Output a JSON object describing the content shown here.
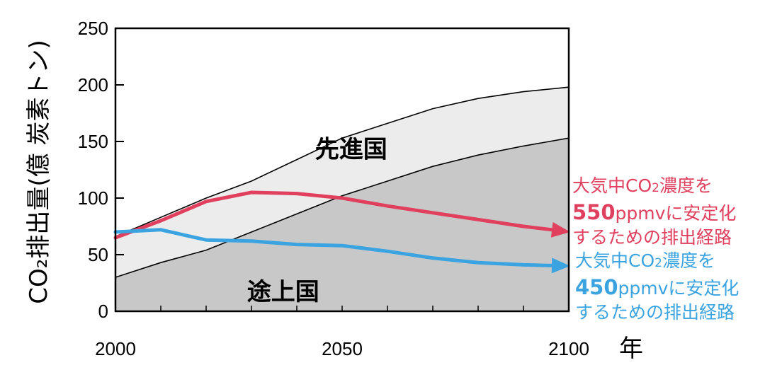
{
  "chart_data": {
    "type": "area",
    "ylabel": "CO₂排出量(億 炭素トン)",
    "xlabel_unit": "年",
    "xlim": [
      2000,
      2100
    ],
    "ylim": [
      0,
      250
    ],
    "x_ticks": [
      2000,
      2050,
      2100
    ],
    "y_ticks": [
      0,
      50,
      100,
      150,
      200,
      250
    ],
    "grid": false,
    "regions": [
      {
        "name": "先進国",
        "color": "#ececec"
      },
      {
        "name": "途上国",
        "color": "#c8c8c8"
      }
    ],
    "x": [
      2000,
      2010,
      2020,
      2030,
      2040,
      2050,
      2060,
      2070,
      2080,
      2090,
      2100
    ],
    "series": [
      {
        "name": "途上国",
        "role": "developing_upper",
        "values": [
          30,
          43,
          54,
          70,
          86,
          102,
          115,
          128,
          138,
          146,
          153
        ]
      },
      {
        "name": "先進国",
        "role": "total_upper",
        "values": [
          66,
          83,
          100,
          115,
          134,
          153,
          166,
          179,
          188,
          194,
          198
        ]
      },
      {
        "name": "550",
        "role": "stabilization",
        "color": "#e0405e",
        "values": [
          65,
          80,
          97,
          105,
          104,
          100,
          93,
          87,
          81,
          75,
          70
        ]
      },
      {
        "name": "450",
        "role": "stabilization",
        "color": "#3ba4e0",
        "values": [
          70,
          72,
          63,
          62,
          59,
          58,
          53,
          47,
          43,
          41,
          40
        ]
      }
    ],
    "annotations": [
      {
        "color": "#e0405e",
        "line1": "大気中CO",
        "sub": "2",
        "line1b": "濃度を",
        "num": "550",
        "line2": "ppmvに安定化",
        "line3": "するための排出経路"
      },
      {
        "color": "#3ba4e0",
        "line1": "大気中CO",
        "sub": "2",
        "line1b": "濃度を",
        "num": "450",
        "line2": "ppmvに安定化",
        "line3": "するための排出経路"
      }
    ]
  }
}
